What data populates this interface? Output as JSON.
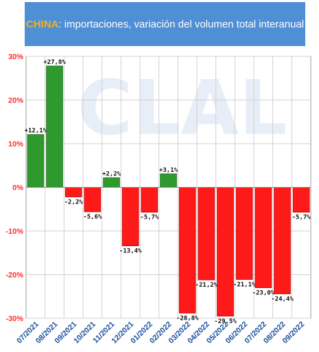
{
  "chart_data": {
    "type": "bar",
    "title_highlight": "CHINA",
    "title_rest": ": importaciones, variación del volumen total interanual",
    "watermark": "CLAL",
    "categories": [
      "07/2021",
      "08/2021",
      "09/2021",
      "10/2021",
      "11/2021",
      "12/2021",
      "01/2022",
      "02/2022",
      "03/2022",
      "04/2022",
      "05/2022",
      "06/2022",
      "07/2022",
      "08/2022",
      "09/2022"
    ],
    "values": [
      12.1,
      27.8,
      -2.2,
      -5.6,
      2.2,
      -13.4,
      -5.7,
      3.1,
      -28.8,
      -21.2,
      -29.5,
      -21.1,
      -23.0,
      -24.4,
      -5.7
    ],
    "data_labels": [
      "+12,1%",
      "+27,8%",
      "-2,2%",
      "-5,6%",
      "+2,2%",
      "-13,4%",
      "-5,7%",
      "+3,1%",
      "-28,8%",
      "-21,2%",
      "-29,5%",
      "-21,1%",
      "-23,0%",
      "-24,4%",
      "-5,7%"
    ],
    "yticks": [
      30,
      20,
      10,
      0,
      -10,
      -20,
      -30
    ],
    "ytick_labels": [
      "30%",
      "20%",
      "10%",
      "0%",
      "-10%",
      "-20%",
      "-30%"
    ],
    "ylim": [
      -30,
      30
    ],
    "grid": true,
    "positive_color": "#2e9a2e",
    "negative_color": "#ff1a1a",
    "axis_label_color": "#1a4f9c"
  }
}
